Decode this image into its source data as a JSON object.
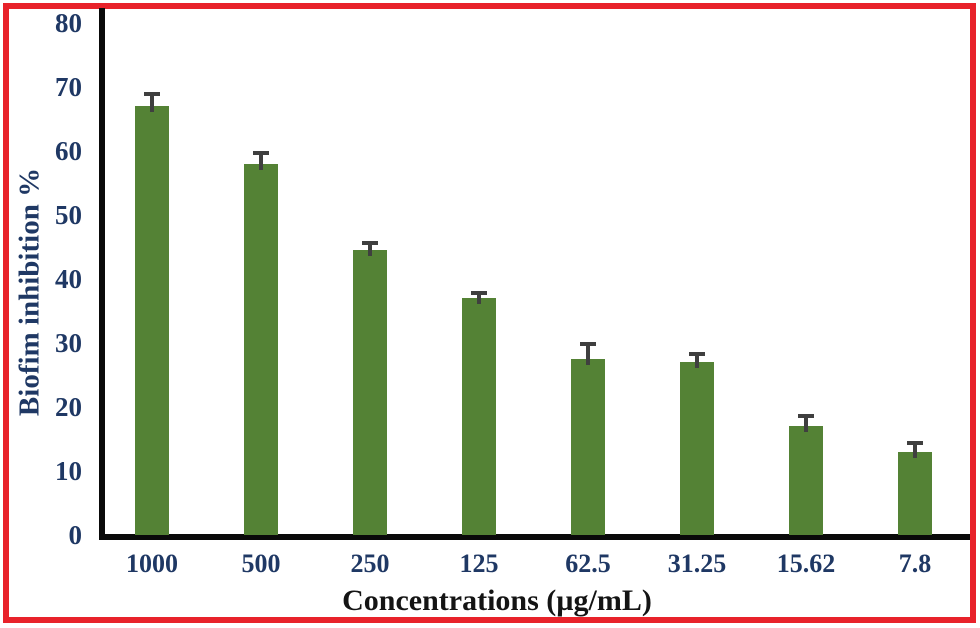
{
  "figure": {
    "border_color": "#e8222a",
    "background_color": "#ffffff"
  },
  "chart_data": {
    "type": "bar",
    "title": "",
    "xlabel": "Concentrations (µg/mL)",
    "ylabel": "Biofim inhibition %",
    "categories": [
      "1000",
      "500",
      "250",
      "125",
      "62.5",
      "31.25",
      "15.62",
      "7.8"
    ],
    "values": [
      67,
      58,
      44.5,
      37,
      27.5,
      27,
      17,
      13
    ],
    "errors": [
      2.2,
      2.0,
      1.4,
      1.1,
      2.6,
      1.6,
      1.9,
      1.7
    ],
    "yticks": [
      0,
      10,
      20,
      30,
      40,
      50,
      60,
      70,
      80
    ],
    "ylim": [
      0,
      80
    ],
    "grid": "off",
    "legend": "none",
    "bar_color": "#548235",
    "error_bar_color": "#3f3f3f",
    "axis_color": "#0a0a0a",
    "tick_label_color": "#1f3864",
    "ylabel_color": "#1f3864",
    "xlabel_color": "#141414"
  }
}
